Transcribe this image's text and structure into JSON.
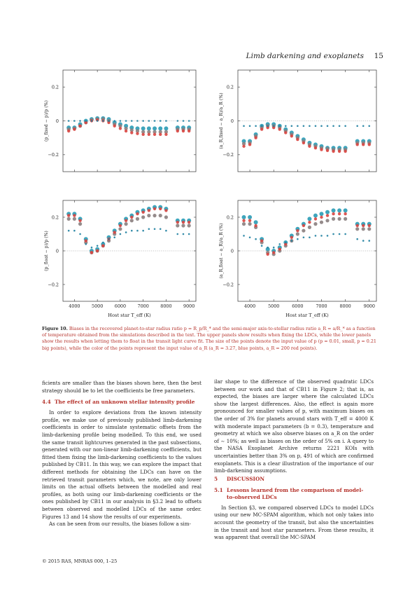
{
  "header": {
    "running_title": "Limb darkening and exoplanets",
    "page_number": "15"
  },
  "figure": {
    "label": "Figure 10.",
    "caption": "Biases in the recovered planet-to-star radius ratio p = R_p/R_* and the semi-major axis-to-stellar radius ratio a_R = a/R_* as a function of temperature obtained from the simulations described in the text. The upper panels show results when fixing the LDCs, while the lower panels show the results when letting them to float in the transit light curve fit. The size of the points denote the input value of p (p = 0.01, small, p = 0.21 big points), while the color of the points represent the input value of a_R (a_R = 3.27, blue points, a_R = 200 red points).",
    "xlabel": "Host star T_eff (K)"
  },
  "chart_data": [
    {
      "type": "scatter",
      "panel": "top-left",
      "ylabel": "(p_fixed − p)/p (%)",
      "xlim": [
        3500,
        9300
      ],
      "ylim": [
        -0.3,
        0.3
      ],
      "xticks": [
        "4000",
        "5000",
        "6000",
        "7000",
        "8000",
        "9000"
      ],
      "yticks": [
        "−0.2",
        "0",
        "0.2"
      ],
      "x": [
        3750,
        4000,
        4250,
        4500,
        4750,
        5000,
        5250,
        5500,
        5750,
        6000,
        6250,
        6500,
        6750,
        7000,
        7250,
        7500,
        7750,
        8000,
        8500,
        8750,
        9000
      ],
      "series": [
        {
          "color": "#2a9bb5",
          "values": [
            -0.04,
            -0.04,
            -0.02,
            0.0,
            0.01,
            0.015,
            0.015,
            0.01,
            -0.01,
            -0.02,
            -0.03,
            -0.04,
            -0.045,
            -0.045,
            -0.045,
            -0.045,
            -0.045,
            -0.045,
            -0.04,
            -0.04,
            -0.04
          ]
        },
        {
          "color": "#8a7e7e",
          "values": [
            -0.05,
            -0.045,
            -0.03,
            -0.01,
            0.005,
            0.01,
            0.01,
            0.0,
            -0.02,
            -0.03,
            -0.045,
            -0.055,
            -0.06,
            -0.065,
            -0.065,
            -0.065,
            -0.065,
            -0.065,
            -0.05,
            -0.05,
            -0.05
          ]
        },
        {
          "color": "#d9443f",
          "values": [
            -0.06,
            -0.05,
            -0.03,
            -0.01,
            0.0,
            0.005,
            0.0,
            -0.01,
            -0.03,
            -0.045,
            -0.06,
            -0.07,
            -0.075,
            -0.08,
            -0.08,
            -0.08,
            -0.08,
            -0.08,
            -0.06,
            -0.06,
            -0.06
          ]
        },
        {
          "color": "#1e7fa0",
          "values": [
            0.0,
            0.0,
            0.0,
            0.0,
            0.0,
            0.0,
            0.0,
            0.0,
            0.0,
            0.0,
            0.0,
            0.0,
            0.0,
            0.0,
            0.0,
            0.0,
            0.0,
            0.0,
            0.0,
            0.0,
            0.0
          ]
        }
      ]
    },
    {
      "type": "scatter",
      "panel": "top-right",
      "ylabel": "(a_R,fixed − a_R)/a_R (%)",
      "xlim": [
        3500,
        9300
      ],
      "ylim": [
        -0.3,
        0.3
      ],
      "xticks": [
        "4000",
        "5000",
        "6000",
        "7000",
        "8000",
        "9000"
      ],
      "yticks": [
        "−0.2",
        "0",
        "0.2"
      ],
      "x": [
        3750,
        4000,
        4250,
        4500,
        4750,
        5000,
        5250,
        5500,
        5750,
        6000,
        6250,
        6500,
        6750,
        7000,
        7250,
        7500,
        7750,
        8000,
        8500,
        8750,
        9000
      ],
      "series": [
        {
          "color": "#2a9bb5",
          "values": [
            -0.12,
            -0.12,
            -0.08,
            -0.03,
            -0.02,
            -0.02,
            -0.03,
            -0.05,
            -0.07,
            -0.09,
            -0.11,
            -0.13,
            -0.14,
            -0.15,
            -0.16,
            -0.16,
            -0.16,
            -0.16,
            -0.12,
            -0.12,
            -0.12
          ]
        },
        {
          "color": "#8a7e7e",
          "values": [
            -0.135,
            -0.13,
            -0.09,
            -0.04,
            -0.03,
            -0.03,
            -0.04,
            -0.06,
            -0.08,
            -0.1,
            -0.12,
            -0.14,
            -0.15,
            -0.16,
            -0.165,
            -0.17,
            -0.17,
            -0.17,
            -0.13,
            -0.13,
            -0.13
          ]
        },
        {
          "color": "#d9443f",
          "values": [
            -0.15,
            -0.14,
            -0.1,
            -0.05,
            -0.04,
            -0.04,
            -0.05,
            -0.07,
            -0.09,
            -0.11,
            -0.13,
            -0.15,
            -0.16,
            -0.17,
            -0.175,
            -0.18,
            -0.18,
            -0.18,
            -0.14,
            -0.14,
            -0.14
          ]
        },
        {
          "color": "#1e7fa0",
          "values": [
            -0.03,
            -0.03,
            -0.03,
            -0.03,
            -0.03,
            -0.03,
            -0.03,
            -0.03,
            -0.03,
            -0.03,
            -0.03,
            -0.03,
            -0.03,
            -0.03,
            -0.03,
            -0.03,
            -0.03,
            -0.03,
            -0.03,
            -0.03,
            -0.03
          ]
        }
      ]
    },
    {
      "type": "scatter",
      "panel": "bottom-left",
      "ylabel": "(p_float − p)/p (%)",
      "xlim": [
        3500,
        9300
      ],
      "ylim": [
        -0.3,
        0.3
      ],
      "xticks": [
        "4000",
        "5000",
        "6000",
        "7000",
        "8000",
        "9000"
      ],
      "yticks": [
        "−0.2",
        "0",
        "0.2"
      ],
      "x": [
        3750,
        4000,
        4250,
        4500,
        4750,
        5000,
        5250,
        5500,
        5750,
        6000,
        6250,
        6500,
        6750,
        7000,
        7250,
        7500,
        7750,
        8000,
        8500,
        8750,
        9000
      ],
      "series": [
        {
          "color": "#2a9bb5",
          "values": [
            0.22,
            0.22,
            0.19,
            0.07,
            0.0,
            0.01,
            0.04,
            0.08,
            0.12,
            0.16,
            0.19,
            0.21,
            0.23,
            0.24,
            0.25,
            0.26,
            0.26,
            0.25,
            0.18,
            0.18,
            0.18
          ]
        },
        {
          "color": "#8a7e7e",
          "values": [
            0.19,
            0.19,
            0.16,
            0.05,
            -0.01,
            0.0,
            0.03,
            0.06,
            0.1,
            0.13,
            0.16,
            0.18,
            0.19,
            0.2,
            0.21,
            0.21,
            0.21,
            0.2,
            0.15,
            0.15,
            0.15
          ]
        },
        {
          "color": "#d9443f",
          "values": [
            0.21,
            0.21,
            0.18,
            0.06,
            -0.01,
            0.0,
            0.03,
            0.07,
            0.11,
            0.15,
            0.18,
            0.2,
            0.22,
            0.23,
            0.24,
            0.25,
            0.25,
            0.24,
            0.17,
            0.17,
            0.17
          ]
        },
        {
          "color": "#1e7fa0",
          "values": [
            0.12,
            0.12,
            0.1,
            0.04,
            0.02,
            0.03,
            0.05,
            0.07,
            0.08,
            0.1,
            0.11,
            0.12,
            0.12,
            0.12,
            0.13,
            0.13,
            0.13,
            0.12,
            0.1,
            0.1,
            0.1
          ]
        }
      ]
    },
    {
      "type": "scatter",
      "panel": "bottom-right",
      "ylabel": "(a_R,float − a_R)/a_R (%)",
      "xlim": [
        3500,
        9300
      ],
      "ylim": [
        -0.3,
        0.3
      ],
      "xticks": [
        "4000",
        "5000",
        "6000",
        "7000",
        "8000",
        "9000"
      ],
      "yticks": [
        "−0.2",
        "0",
        "0.2"
      ],
      "x": [
        3750,
        4000,
        4250,
        4500,
        4750,
        5000,
        5250,
        5500,
        5750,
        6000,
        6250,
        6500,
        6750,
        7000,
        7250,
        7500,
        7750,
        8000,
        8500,
        8750,
        9000
      ],
      "series": [
        {
          "color": "#2a9bb5",
          "values": [
            0.2,
            0.2,
            0.17,
            0.07,
            0.01,
            0.0,
            0.02,
            0.05,
            0.09,
            0.13,
            0.16,
            0.19,
            0.21,
            0.22,
            0.23,
            0.24,
            0.24,
            0.24,
            0.16,
            0.16,
            0.16
          ]
        },
        {
          "color": "#8a7e7e",
          "values": [
            0.16,
            0.16,
            0.14,
            0.05,
            -0.01,
            -0.02,
            0.0,
            0.03,
            0.06,
            0.1,
            0.12,
            0.14,
            0.16,
            0.17,
            0.18,
            0.19,
            0.19,
            0.19,
            0.13,
            0.13,
            0.13
          ]
        },
        {
          "color": "#d9443f",
          "values": [
            0.18,
            0.18,
            0.15,
            0.06,
            -0.02,
            -0.01,
            0.01,
            0.04,
            0.08,
            0.12,
            0.15,
            0.17,
            0.19,
            0.2,
            0.21,
            0.22,
            0.22,
            0.22,
            0.15,
            0.15,
            0.15
          ]
        },
        {
          "color": "#1e7fa0",
          "values": [
            0.09,
            0.08,
            0.07,
            0.03,
            0.02,
            0.02,
            0.04,
            0.05,
            0.06,
            0.07,
            0.08,
            0.08,
            0.09,
            0.09,
            0.09,
            0.1,
            0.1,
            0.1,
            0.07,
            0.06,
            0.06
          ]
        }
      ]
    }
  ],
  "left_column": {
    "p1": "ficients are smaller than the biases shown here, then the best strategy should be to let the coefficients be free parameters.",
    "sec_num": "4.4",
    "sec_title": "The effect of an unknown stellar intensity profile",
    "p2": "In order to explore deviations from the known intensity profile, we make use of previously published limb-darkening coefficients in order to simulate systematic offsets from the limb-darkening profile being modelled. To this end, we used the same transit lightcurves generated in the past subsections, generated with our non-linear limb-darkening coefficients, but fitted them fixing the limb-darkening coefficients to the values published by CB11. In this way, we can explore the impact that different methods for obtaining the LDCs can have on the retrieved transit parameters which, we note, are only lower limits on the actual offsets between the modelled and real profiles, as both using our limb-darkening coefficients or the ones published by CB11 in our analysis in §3.2 lead to offsets between observed and modelled LDCs of the same order. Figures 13 and 14 show the results of our experiments.",
    "p3": "As can be seen from our results, the biases follow a sim-"
  },
  "right_column": {
    "p1": "ilar shape to the difference of the observed quadratic LDCs between our work and that of CB11 in Figure 2; that is, as expected, the biases are larger where the calculated LDCs show the largest differences. Also, the effect is again more pronounced for smaller values of p, with maximum biases on the order of 3% for planets around stars with T_eff = 4000 K with moderate impact parameters (b = 0.3), temperature and geometry at which we also observe biases on a_R on the order of ∼ 10%; as well as biases on the order of 5% on i. A query to the NASA Exoplanet Archive returns 2221 KOIs with uncertainties better than 3% on p, 491 of which are confirmed exoplanets. This is a clear illustration of the importance of our limb-darkening assumptions.",
    "sec5_num": "5",
    "sec5_title": "DISCUSSION",
    "sec51_num": "5.1",
    "sec51_title": "Lessons learned from the comparison of model-to-observed LDCs",
    "p2": "In Section §3, we compared observed LDCs to model LDCs using our new MC-SPAM algorithm, which not only takes into account the geometry of the transit, but also the uncertainties in the transit and host star parameters. From these results, it was apparent that overall the MC-SPAM"
  },
  "footer": {
    "text": "© 2015 RAS, MNRAS 000, 1–25"
  }
}
